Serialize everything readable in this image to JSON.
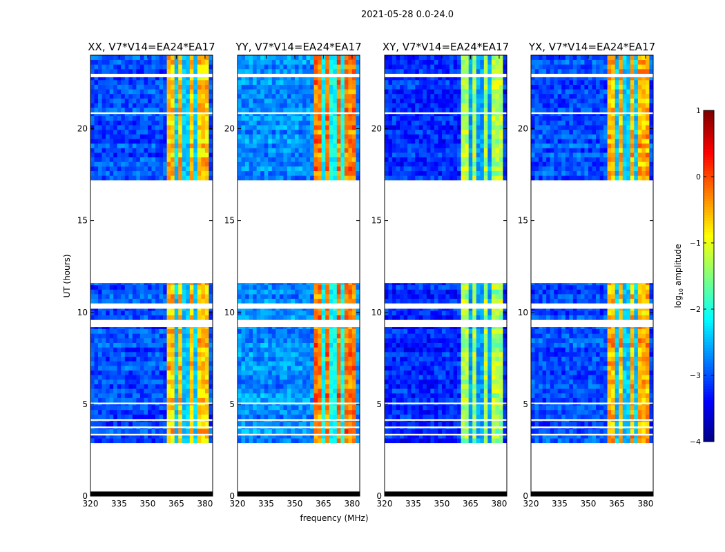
{
  "chart_data": {
    "type": "heatmap",
    "suptitle": "2021-05-28 0.0-24.0",
    "xlabel": "frequency (MHz)",
    "ylabel": "UT (hours)",
    "xlim": [
      320,
      384
    ],
    "ylim": [
      0,
      24
    ],
    "xticks": [
      "320",
      "335",
      "350",
      "365",
      "380"
    ],
    "xtick_values": [
      320,
      335,
      350,
      365,
      380
    ],
    "yticks": [
      "0",
      "5",
      "10",
      "15",
      "20"
    ],
    "ytick_values": [
      0,
      5,
      10,
      15,
      20
    ],
    "time_segments_hours": [
      [
        2.9,
        3.3
      ],
      [
        3.4,
        3.7
      ],
      [
        3.8,
        4.1
      ],
      [
        4.2,
        5.0
      ],
      [
        5.1,
        9.2
      ],
      [
        9.6,
        10.2
      ],
      [
        10.5,
        11.6
      ],
      [
        17.2,
        20.8
      ],
      [
        20.9,
        22.8
      ],
      [
        23.0,
        24.0
      ]
    ],
    "flagged_black_hours": [
      [
        0.0,
        0.25
      ]
    ],
    "bright_band_mhz": [
      360,
      380
    ],
    "band_gaps_mhz": [
      365,
      370,
      375
    ],
    "panels": [
      {
        "title": "XX, V7*V14=EA24*EA17",
        "background_log_amp": -3.0,
        "band_log_amp": -0.6
      },
      {
        "title": "YY, V7*V14=EA24*EA17",
        "background_log_amp": -2.7,
        "band_log_amp": -0.2
      },
      {
        "title": "XY, V7*V14=EA24*EA17",
        "background_log_amp": -3.2,
        "band_log_amp": -1.3
      },
      {
        "title": "YX, V7*V14=EA24*EA17",
        "background_log_amp": -3.0,
        "band_log_amp": -0.5
      }
    ],
    "colorbar": {
      "label": "log10 amplitude",
      "label_main": "log",
      "label_sub": "10",
      "label_rest": " amplitude",
      "range": [
        -4,
        1
      ],
      "ticks": [
        "1",
        "0",
        "−1",
        "−2",
        "−3",
        "−4"
      ],
      "tick_values": [
        1,
        0,
        -1,
        -2,
        -3,
        -4
      ],
      "colormap": "jet"
    }
  }
}
